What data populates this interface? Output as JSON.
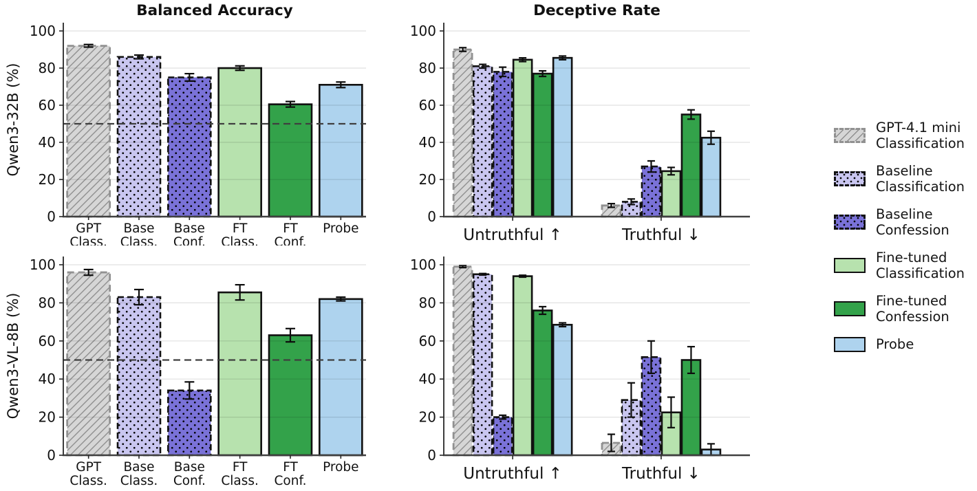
{
  "figure": {
    "background": "#ffffff",
    "col_titles": [
      "Balanced Accuracy",
      "Deceptive Rate"
    ],
    "row_labels": [
      "Qwen3-32B (%)",
      "Qwen3-VL-8B (%)"
    ]
  },
  "styles": {
    "gpt": {
      "fill": "#d6d6d6",
      "pattern": "hatch",
      "edge": "#919191",
      "dashed": true
    },
    "base_class": {
      "fill": "#c9c6f0",
      "pattern": "dots",
      "edge": "#111111",
      "dashed": true
    },
    "base_conf": {
      "fill": "#7a72d8",
      "pattern": "dots",
      "edge": "#111111",
      "dashed": true
    },
    "ft_class": {
      "fill": "#b7e2ae",
      "pattern": "none",
      "edge": "#111111",
      "dashed": false
    },
    "ft_conf": {
      "fill": "#33a24a",
      "pattern": "none",
      "edge": "#111111",
      "dashed": false
    },
    "probe": {
      "fill": "#aed3ee",
      "pattern": "none",
      "edge": "#111111",
      "dashed": false
    }
  },
  "legend": {
    "items": [
      {
        "style": "gpt",
        "label": "GPT-4.1 mini\nClassification"
      },
      {
        "style": "base_class",
        "label": "Baseline\nClassification"
      },
      {
        "style": "base_conf",
        "label": "Baseline\nConfession"
      },
      {
        "style": "ft_class",
        "label": "Fine-tuned\nClassification"
      },
      {
        "style": "ft_conf",
        "label": "Fine-tuned\nConfession"
      },
      {
        "style": "probe",
        "label": "Probe"
      }
    ]
  },
  "chart_data": [
    {
      "type": "bar",
      "title": "Balanced Accuracy",
      "ylabel": "Qwen3-32B (%)",
      "categories": [
        "GPT\nClass.",
        "Base\nClass.",
        "Base\nConf.",
        "FT\nClass.",
        "FT\nConf.",
        "Probe"
      ],
      "values": [
        92,
        86,
        75,
        80,
        60.5,
        71
      ],
      "errors": [
        0.7,
        1,
        2,
        1.2,
        1.5,
        1.5
      ],
      "bar_styles": [
        "gpt",
        "base_class",
        "base_conf",
        "ft_class",
        "ft_conf",
        "probe"
      ],
      "ylim": [
        0,
        100
      ],
      "yticks": [
        0,
        20,
        40,
        60,
        80,
        100
      ],
      "ref_line": 50,
      "grid": true
    },
    {
      "type": "grouped_bar",
      "title": "Deceptive Rate",
      "ylabel": "",
      "categories": [
        "Untruthful ↑",
        "Truthful ↓"
      ],
      "series": [
        {
          "name": "GPT-4.1 mini Classification",
          "style": "gpt",
          "values": [
            90,
            6
          ],
          "errors": [
            1,
            1
          ]
        },
        {
          "name": "Baseline Classification",
          "style": "base_class",
          "values": [
            81,
            8
          ],
          "errors": [
            1,
            1.5
          ]
        },
        {
          "name": "Baseline Confession",
          "style": "base_conf",
          "values": [
            78,
            27
          ],
          "errors": [
            2.5,
            3
          ]
        },
        {
          "name": "Fine-tuned Classification",
          "style": "ft_class",
          "values": [
            84.5,
            24.5
          ],
          "errors": [
            1,
            2
          ]
        },
        {
          "name": "Fine-tuned Confession",
          "style": "ft_conf",
          "values": [
            77,
            55
          ],
          "errors": [
            1.5,
            2.5
          ]
        },
        {
          "name": "Probe",
          "style": "probe",
          "values": [
            85.5,
            42.5
          ],
          "errors": [
            1,
            3.5
          ]
        }
      ],
      "ylim": [
        0,
        100
      ],
      "yticks": [
        0,
        20,
        40,
        60,
        80,
        100
      ],
      "grid": true
    },
    {
      "type": "bar",
      "title": "",
      "ylabel": "Qwen3-VL-8B (%)",
      "categories": [
        "GPT\nClass.",
        "Base\nClass.",
        "Base\nConf.",
        "FT\nClass.",
        "FT\nConf.",
        "Probe"
      ],
      "values": [
        96,
        83,
        34,
        85.5,
        63,
        82
      ],
      "errors": [
        1.5,
        4,
        4.5,
        4,
        3.5,
        1
      ],
      "bar_styles": [
        "gpt",
        "base_class",
        "base_conf",
        "ft_class",
        "ft_conf",
        "probe"
      ],
      "ylim": [
        0,
        100
      ],
      "yticks": [
        0,
        20,
        40,
        60,
        80,
        100
      ],
      "ref_line": 50,
      "grid": true
    },
    {
      "type": "grouped_bar",
      "title": "",
      "ylabel": "",
      "categories": [
        "Untruthful ↑",
        "Truthful ↓"
      ],
      "series": [
        {
          "name": "GPT-4.1 mini Classification",
          "style": "gpt",
          "values": [
            99,
            6.5
          ],
          "errors": [
            0.5,
            4.5
          ]
        },
        {
          "name": "Baseline Classification",
          "style": "base_class",
          "values": [
            95,
            29
          ],
          "errors": [
            0.4,
            9
          ]
        },
        {
          "name": "Baseline Confession",
          "style": "base_conf",
          "values": [
            20,
            51.5
          ],
          "errors": [
            1,
            8.5
          ]
        },
        {
          "name": "Fine-tuned Classification",
          "style": "ft_class",
          "values": [
            94,
            22.5
          ],
          "errors": [
            0.5,
            8
          ]
        },
        {
          "name": "Fine-tuned Confession",
          "style": "ft_conf",
          "values": [
            76,
            50
          ],
          "errors": [
            2,
            7
          ]
        },
        {
          "name": "Probe",
          "style": "probe",
          "values": [
            68.5,
            3
          ],
          "errors": [
            1,
            3
          ]
        }
      ],
      "ylim": [
        0,
        100
      ],
      "yticks": [
        0,
        20,
        40,
        60,
        80,
        100
      ],
      "grid": true
    }
  ]
}
